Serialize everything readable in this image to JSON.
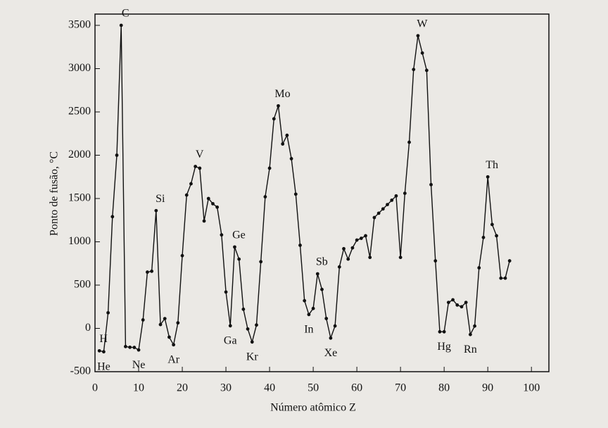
{
  "chart_data": {
    "type": "line",
    "x_label": "Número atômico Z",
    "y_label": "Ponto de fusão, °C",
    "xlim": [
      0,
      104
    ],
    "xticks": [
      0,
      10,
      20,
      30,
      40,
      50,
      60,
      70,
      80,
      90,
      100
    ],
    "ylim": [
      -500,
      3630
    ],
    "yticks": [
      -500,
      0,
      500,
      1000,
      1500,
      2000,
      2500,
      3000,
      3500
    ],
    "color": "#111111",
    "x": [
      1,
      2,
      3,
      4,
      5,
      6,
      7,
      8,
      9,
      10,
      11,
      12,
      13,
      14,
      15,
      16,
      17,
      18,
      19,
      20,
      21,
      22,
      23,
      24,
      25,
      26,
      27,
      28,
      29,
      30,
      31,
      32,
      33,
      34,
      35,
      36,
      37,
      38,
      39,
      40,
      41,
      42,
      43,
      44,
      45,
      46,
      47,
      48,
      49,
      50,
      51,
      52,
      53,
      54,
      55,
      56,
      57,
      58,
      59,
      60,
      61,
      62,
      63,
      64,
      65,
      66,
      67,
      68,
      69,
      70,
      71,
      72,
      73,
      74,
      75,
      76,
      77,
      78,
      79,
      80,
      81,
      82,
      83,
      84,
      85,
      86,
      87,
      88,
      89,
      90,
      91,
      92,
      93,
      94,
      95
    ],
    "values": [
      -259,
      -270,
      180,
      1290,
      2000,
      3500,
      -210,
      -218,
      -220,
      -249,
      98,
      650,
      660,
      1360,
      44,
      113,
      -101,
      -189,
      64,
      840,
      1540,
      1670,
      1870,
      1850,
      1240,
      1500,
      1440,
      1400,
      1080,
      420,
      30,
      940,
      800,
      221,
      -7,
      -157,
      39,
      770,
      1520,
      1850,
      2420,
      2570,
      2130,
      2230,
      1960,
      1550,
      960,
      320,
      160,
      230,
      630,
      450,
      114,
      -112,
      28,
      710,
      920,
      800,
      930,
      1020,
      1040,
      1070,
      820,
      1280,
      1330,
      1380,
      1430,
      1480,
      1530,
      820,
      1560,
      2150,
      2990,
      3380,
      3180,
      2980,
      1660,
      780,
      -39,
      -39,
      300,
      330,
      270,
      250,
      300,
      -71,
      27,
      700,
      1050,
      1750,
      1200,
      1070,
      580,
      580,
      780
    ],
    "point_labels": [
      "H",
      "He",
      null,
      null,
      null,
      "C",
      null,
      null,
      null,
      "Ne",
      null,
      null,
      null,
      "Si",
      null,
      null,
      null,
      "Ar",
      null,
      null,
      null,
      null,
      "V",
      null,
      null,
      null,
      null,
      null,
      null,
      null,
      "Ga",
      "Ge",
      null,
      null,
      null,
      "Kr",
      null,
      null,
      null,
      null,
      null,
      "Mo",
      null,
      null,
      null,
      null,
      null,
      null,
      "In",
      null,
      "Sb",
      null,
      null,
      "Xe",
      null,
      null,
      null,
      null,
      null,
      null,
      null,
      null,
      null,
      null,
      null,
      null,
      null,
      null,
      null,
      null,
      null,
      null,
      null,
      "W",
      null,
      null,
      null,
      null,
      null,
      "Hg",
      null,
      null,
      null,
      null,
      null,
      "Rn",
      null,
      null,
      null,
      "Th",
      null,
      null,
      null,
      null,
      null
    ]
  }
}
